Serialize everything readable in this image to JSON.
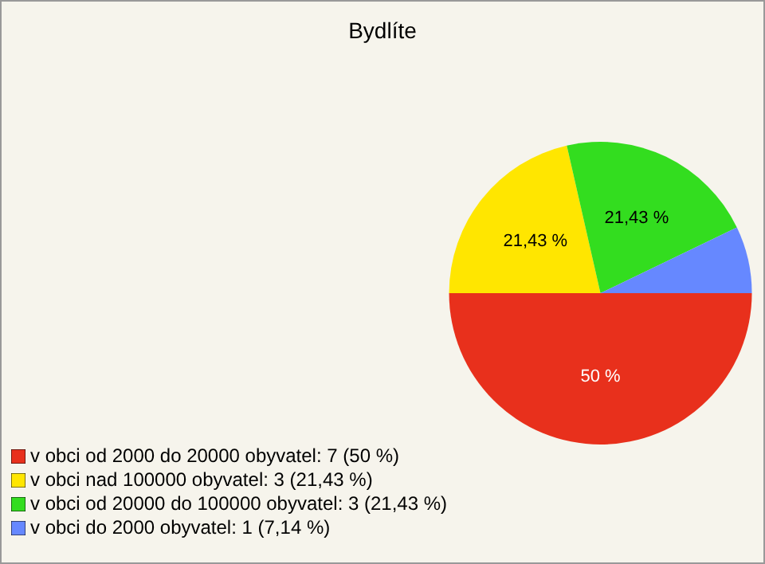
{
  "chart_data": {
    "type": "pie",
    "title": "Bydlíte",
    "categories": [
      "v obci od 2000 do 20000 obyvatel: 7 (50 %)",
      "v obci nad 100000 obyvatel: 3 (21,43 %)",
      "v obci od 20000 do 100000 obyvatel: 3 (21,43 %)",
      "v obci do 2000 obyvatel: 1 (7,14 %)"
    ],
    "values": [
      50,
      21.43,
      21.43,
      7.14
    ],
    "colors": [
      "#e8301c",
      "#ffe600",
      "#33dd1f",
      "#6688ff"
    ],
    "value_labels": [
      "50 %",
      "21,43 %",
      "21,43 %",
      null
    ],
    "legend": "bottom"
  }
}
